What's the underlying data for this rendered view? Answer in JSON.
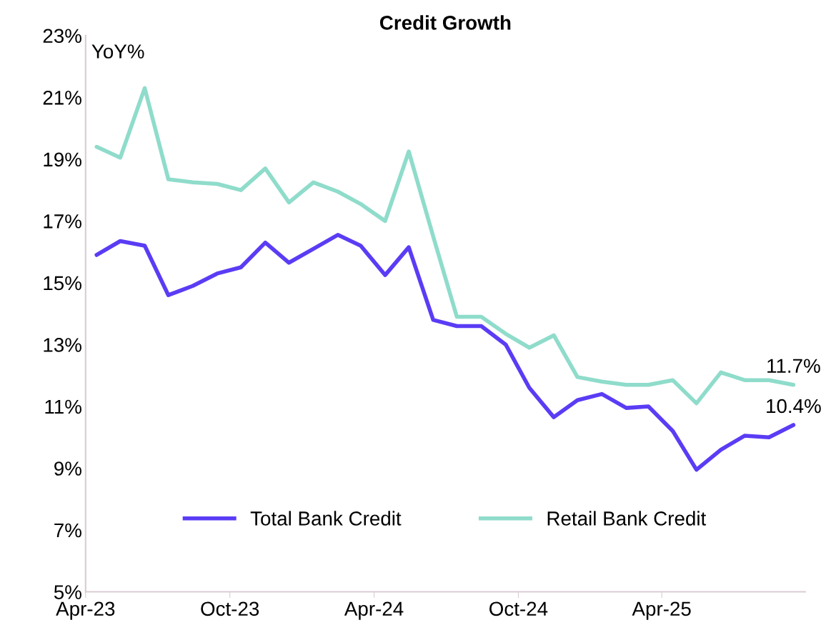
{
  "chart_data": {
    "type": "line",
    "title": "Credit Growth",
    "x": [
      "2023-04-15",
      "2023-05-15",
      "2023-06-15",
      "2023-07-15",
      "2023-08-15",
      "2023-09-15",
      "2023-10-15",
      "2023-11-15",
      "2023-12-15",
      "2024-01-15",
      "2024-02-15",
      "2024-03-15",
      "2024-04-15",
      "2024-05-15",
      "2024-06-15",
      "2024-07-15",
      "2024-08-15",
      "2024-09-15",
      "2024-10-15",
      "2024-11-15",
      "2024-12-15",
      "2025-01-15",
      "2025-02-15",
      "2025-03-15",
      "2025-04-15",
      "2025-05-15",
      "2025-06-15",
      "2025-07-15",
      "2025-08-15",
      "2025-09-15"
    ],
    "series": [
      {
        "name": "Total Bank Credit",
        "color": "#5b3cf5",
        "values": [
          15.9,
          16.35,
          16.2,
          14.6,
          14.9,
          15.3,
          15.5,
          16.3,
          15.65,
          16.1,
          16.55,
          16.2,
          15.25,
          16.15,
          13.8,
          13.6,
          13.6,
          13.0,
          11.6,
          10.65,
          11.2,
          11.4,
          10.95,
          11.0,
          10.2,
          8.95,
          9.6,
          10.05,
          10.0,
          10.4
        ]
      },
      {
        "name": "Retail Bank Credit",
        "color": "#8fdccb",
        "values": [
          19.4,
          19.05,
          21.3,
          18.35,
          18.25,
          18.2,
          18.0,
          18.7,
          17.6,
          18.25,
          17.95,
          17.55,
          17.0,
          19.25,
          16.5,
          13.9,
          13.9,
          13.35,
          12.9,
          13.3,
          11.95,
          11.8,
          11.7,
          11.7,
          11.85,
          11.1,
          12.1,
          11.85,
          11.85,
          11.7
        ]
      }
    ],
    "ylim": [
      5,
      23
    ],
    "yticks": [
      {
        "value": 5,
        "label": "5%"
      },
      {
        "value": 7,
        "label": "7%"
      },
      {
        "value": 9,
        "label": "9%"
      },
      {
        "value": 11,
        "label": "11%"
      },
      {
        "value": 13,
        "label": "13%"
      },
      {
        "value": 15,
        "label": "15%"
      },
      {
        "value": 17,
        "label": "17%"
      },
      {
        "value": 19,
        "label": "19%"
      },
      {
        "value": 21,
        "label": "21%"
      },
      {
        "value": 23,
        "label": "23%"
      }
    ],
    "xlim": [
      "2023-04-01",
      "2025-09-30"
    ],
    "xticks": [
      {
        "value": "2023-04-01",
        "label": "Apr-23"
      },
      {
        "value": "2023-10-01",
        "label": "Oct-23"
      },
      {
        "value": "2024-04-01",
        "label": "Apr-24"
      },
      {
        "value": "2024-10-01",
        "label": "Oct-24"
      },
      {
        "value": "2025-04-01",
        "label": "Apr-25"
      }
    ],
    "annotations": [
      "YoY%",
      {
        "text": "11.7%",
        "x": "2025-09-15",
        "y": 11.7
      },
      {
        "text": "10.4%",
        "x": "2025-09-15",
        "y": 10.4
      }
    ],
    "grid": false,
    "legend": "bottom",
    "marker": "none",
    "line_style": "solid"
  }
}
